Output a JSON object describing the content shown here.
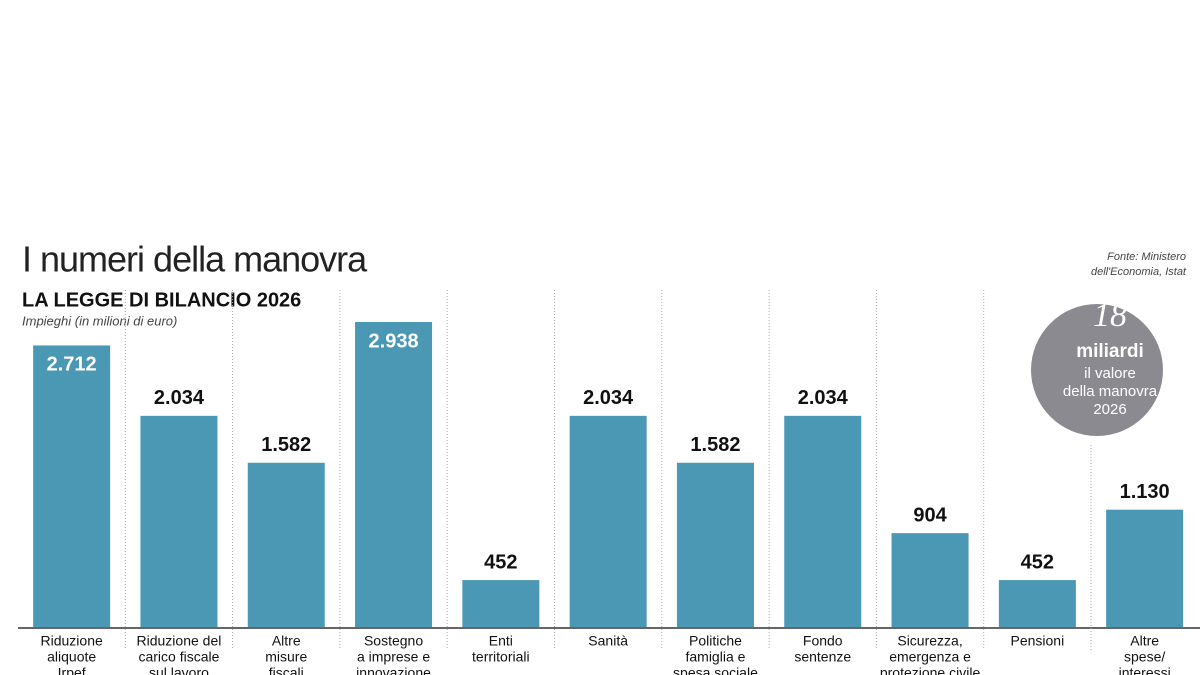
{
  "chart_data": {
    "type": "bar",
    "title": "I numeri della manovra",
    "subtitle": "LA LEGGE DI BILANCIO 2026",
    "unit_note": "Impieghi (in milioni di euro)",
    "source": [
      "Fonte: Ministero",
      "dell'Economia, Istat"
    ],
    "badge": {
      "number": "18",
      "unit": "miliardi",
      "text": [
        "il valore",
        "della manovra",
        "2026"
      ]
    },
    "categories": [
      [
        "Riduzione",
        "aliquote",
        "Irpef"
      ],
      [
        "Riduzione del",
        "carico fiscale",
        "sul lavoro"
      ],
      [
        "Altre",
        "misure",
        "fiscali"
      ],
      [
        "Sostegno",
        "a imprese e",
        "innovazione"
      ],
      [
        "Enti",
        "territoriali"
      ],
      [
        "Sanità"
      ],
      [
        "Politiche",
        "famiglia e",
        "spesa sociale"
      ],
      [
        "Fondo",
        "sentenze"
      ],
      [
        "Sicurezza,",
        "emergenza e",
        "protezione civile"
      ],
      [
        "Pensioni"
      ],
      [
        "Altre",
        "spese/",
        "interessi"
      ]
    ],
    "values": [
      2712,
      2034,
      1582,
      2938,
      452,
      2034,
      1582,
      2034,
      904,
      452,
      1130
    ],
    "value_labels": [
      "2.712",
      "2.034",
      "1.582",
      "2.938",
      "452",
      "2.034",
      "1.582",
      "2.034",
      "904",
      "452",
      "1.130"
    ],
    "color": "#4a98b4"
  }
}
